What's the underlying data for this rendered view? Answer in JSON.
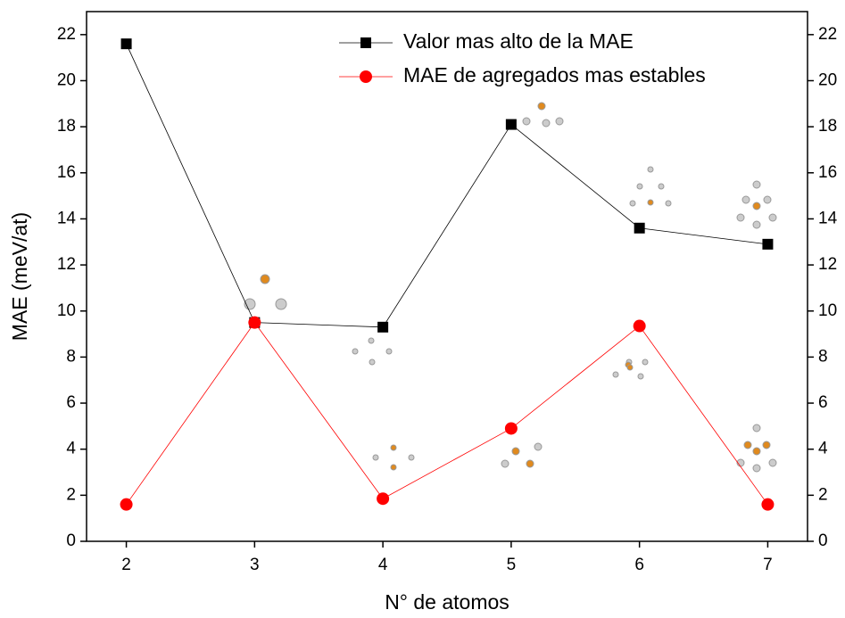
{
  "chart_data": {
    "type": "line",
    "x_label": "N° de atomos",
    "y_label": "MAE (meV/at)",
    "x": [
      2,
      3,
      4,
      5,
      6,
      7
    ],
    "series": [
      {
        "name": "Valor mas alto de la MAE",
        "color": "#000000",
        "marker": "square",
        "values": [
          21.6,
          9.5,
          9.3,
          18.1,
          13.6,
          12.9
        ]
      },
      {
        "name": "MAE de agregados mas estables",
        "color": "#ff0000",
        "marker": "circle",
        "values": [
          1.6,
          9.5,
          1.85,
          4.9,
          9.35,
          1.6
        ]
      }
    ],
    "xlim": [
      1.69,
      7.31
    ],
    "xticks": [
      2,
      3,
      4,
      5,
      6,
      7
    ],
    "ylim": [
      0,
      23
    ],
    "yticks": [
      0,
      2,
      4,
      6,
      8,
      10,
      12,
      14,
      16,
      18,
      20,
      22
    ],
    "y2lim": [
      0,
      23
    ],
    "y2ticks": [
      0,
      2,
      4,
      6,
      8,
      10,
      12,
      14,
      16,
      18,
      20,
      22
    ],
    "legend": "upper right"
  }
}
